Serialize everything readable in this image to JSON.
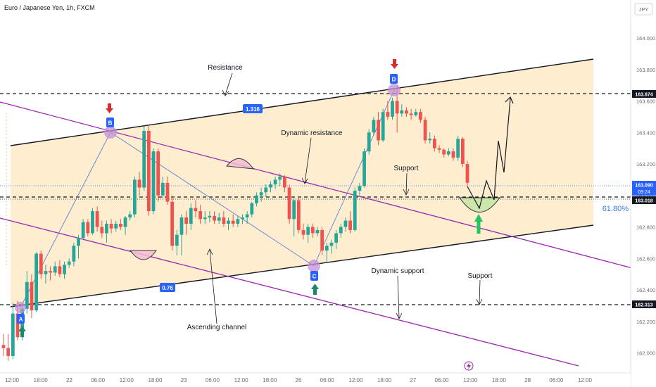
{
  "header": {
    "title": "Euro / Japanese Yen, 1h, FXCM",
    "currency": "JPY"
  },
  "colors": {
    "bull": "#26a69a",
    "bear": "#ef5350",
    "channel_fill": "#fde8bf",
    "dynamic_line": "#9c27b0",
    "pattern_blue": "#2962ff",
    "price_tag": "#131722",
    "live_tag": "#2962ff"
  },
  "annotations": {
    "resistance": "Resistance",
    "dynamic_resistance": "Dynamic resistance",
    "support_upper": "Support",
    "dynamic_support": "Dynamic support",
    "support_lower": "Support",
    "ascending_channel": "Ascending channel",
    "ratio_upper": "1.316",
    "ratio_lower": "0.76",
    "fib_level": "61.80%",
    "point_a": "A",
    "point_b": "B",
    "point_c": "C",
    "point_d": "D"
  },
  "price_tags": {
    "resistance_level": "163.674",
    "live_price": "163.090",
    "countdown": "09:24",
    "support_level": "163.018",
    "lower_support_level": "162.313"
  },
  "chart_data": {
    "type": "candlestick",
    "title": "Euro / Japanese Yen, 1h, FXCM",
    "y_axis_ticks": [
      "164.000",
      "163.800",
      "163.600",
      "163.400",
      "163.200",
      "163.000",
      "162.800",
      "162.600",
      "162.400",
      "162.200",
      "162.000"
    ],
    "ylim": [
      161.93,
      164.2
    ],
    "x_axis_ticks": [
      "12:00",
      "18:00",
      "22",
      "06:00",
      "12:00",
      "18:00",
      "23",
      "06:00",
      "12:00",
      "18:00",
      "26",
      "06:00",
      "12:00",
      "18:00",
      "27",
      "06:00",
      "12:00",
      "18:00",
      "28",
      "06:00",
      "12:00"
    ],
    "horizontal_levels": [
      163.674,
      163.018,
      162.313
    ],
    "candles_ohlc": [
      [
        162.05,
        162.12,
        161.98,
        162.03
      ],
      [
        162.03,
        162.12,
        161.95,
        161.98
      ],
      [
        161.98,
        162.32,
        161.96,
        162.25
      ],
      [
        162.25,
        162.33,
        162.08,
        162.1
      ],
      [
        162.1,
        162.3,
        162.08,
        162.28
      ],
      [
        162.28,
        162.52,
        162.25,
        162.45
      ],
      [
        162.45,
        162.5,
        162.22,
        162.27
      ],
      [
        162.27,
        162.64,
        162.26,
        162.63
      ],
      [
        162.63,
        162.65,
        162.47,
        162.5
      ],
      [
        162.5,
        162.56,
        162.44,
        162.52
      ],
      [
        162.52,
        162.55,
        162.46,
        162.51
      ],
      [
        162.51,
        162.58,
        162.49,
        162.55
      ],
      [
        162.55,
        162.59,
        162.48,
        162.5
      ],
      [
        162.5,
        162.58,
        162.47,
        162.56
      ],
      [
        162.56,
        162.6,
        162.54,
        162.58
      ],
      [
        162.58,
        162.7,
        162.55,
        162.68
      ],
      [
        162.68,
        162.75,
        162.6,
        162.73
      ],
      [
        162.73,
        162.85,
        162.72,
        162.83
      ],
      [
        162.83,
        162.85,
        162.74,
        162.76
      ],
      [
        162.76,
        162.92,
        162.75,
        162.9
      ],
      [
        162.9,
        162.93,
        162.77,
        162.8
      ],
      [
        162.8,
        162.84,
        162.73,
        162.76
      ],
      [
        162.76,
        162.84,
        162.7,
        162.82
      ],
      [
        162.82,
        162.85,
        162.76,
        162.79
      ],
      [
        162.79,
        162.84,
        162.77,
        162.82
      ],
      [
        162.82,
        162.85,
        162.78,
        162.8
      ],
      [
        162.8,
        162.87,
        162.75,
        162.86
      ],
      [
        162.86,
        162.9,
        162.84,
        162.88
      ],
      [
        162.88,
        163.12,
        162.86,
        163.1
      ],
      [
        163.1,
        163.15,
        163.0,
        163.05
      ],
      [
        163.05,
        163.44,
        163.03,
        163.41
      ],
      [
        163.41,
        163.45,
        162.87,
        162.9
      ],
      [
        162.9,
        163.3,
        162.88,
        163.28
      ],
      [
        163.28,
        163.3,
        162.96,
        163.0
      ],
      [
        163.0,
        163.12,
        162.98,
        163.08
      ],
      [
        163.08,
        163.12,
        162.94,
        162.96
      ],
      [
        162.96,
        163.0,
        162.65,
        162.68
      ],
      [
        162.68,
        162.78,
        162.62,
        162.75
      ],
      [
        162.75,
        162.88,
        162.62,
        162.86
      ],
      [
        162.86,
        162.9,
        162.75,
        162.82
      ],
      [
        162.82,
        162.95,
        162.78,
        162.92
      ],
      [
        162.92,
        162.97,
        162.86,
        162.9
      ],
      [
        162.9,
        162.94,
        162.82,
        162.85
      ],
      [
        162.85,
        162.9,
        162.82,
        162.86
      ],
      [
        162.86,
        162.9,
        162.83,
        162.87
      ],
      [
        162.87,
        162.9,
        162.82,
        162.84
      ],
      [
        162.84,
        162.89,
        162.82,
        162.86
      ],
      [
        162.86,
        162.9,
        162.8,
        162.82
      ],
      [
        162.82,
        162.86,
        162.78,
        162.84
      ],
      [
        162.84,
        162.88,
        162.8,
        162.82
      ],
      [
        162.82,
        162.87,
        162.8,
        162.85
      ],
      [
        162.85,
        162.88,
        162.82,
        162.86
      ],
      [
        162.86,
        162.9,
        162.82,
        162.88
      ],
      [
        162.88,
        162.96,
        162.86,
        162.95
      ],
      [
        162.95,
        163.02,
        162.93,
        163.0
      ],
      [
        163.0,
        163.05,
        162.96,
        163.02
      ],
      [
        163.02,
        163.07,
        162.99,
        163.05
      ],
      [
        163.05,
        163.09,
        163.02,
        163.07
      ],
      [
        163.07,
        163.12,
        163.04,
        163.1
      ],
      [
        163.1,
        163.14,
        163.06,
        163.12
      ],
      [
        163.12,
        163.13,
        163.02,
        163.05
      ],
      [
        163.05,
        163.07,
        162.82,
        162.85
      ],
      [
        162.85,
        162.99,
        162.74,
        162.97
      ],
      [
        162.97,
        162.99,
        162.76,
        162.78
      ],
      [
        162.78,
        162.82,
        162.72,
        162.75
      ],
      [
        162.75,
        162.82,
        162.7,
        162.8
      ],
      [
        162.8,
        162.82,
        162.73,
        162.76
      ],
      [
        162.76,
        162.8,
        162.74,
        162.78
      ],
      [
        162.78,
        162.8,
        162.62,
        162.65
      ],
      [
        162.65,
        162.7,
        162.58,
        162.68
      ],
      [
        162.68,
        162.72,
        162.63,
        162.7
      ],
      [
        162.7,
        162.78,
        162.66,
        162.76
      ],
      [
        162.76,
        162.82,
        162.73,
        162.8
      ],
      [
        162.8,
        162.86,
        162.77,
        162.84
      ],
      [
        162.84,
        162.9,
        162.76,
        162.78
      ],
      [
        162.78,
        163.05,
        162.77,
        163.03
      ],
      [
        163.03,
        163.08,
        163.0,
        163.06
      ],
      [
        163.06,
        163.3,
        163.05,
        163.28
      ],
      [
        163.28,
        163.42,
        163.26,
        163.4
      ],
      [
        163.4,
        163.5,
        163.38,
        163.48
      ],
      [
        163.48,
        163.53,
        163.32,
        163.35
      ],
      [
        163.35,
        163.55,
        163.34,
        163.53
      ],
      [
        163.53,
        163.6,
        163.48,
        163.5
      ],
      [
        163.5,
        163.62,
        163.48,
        163.6
      ],
      [
        163.6,
        163.7,
        163.4,
        163.52
      ],
      [
        163.52,
        163.58,
        163.5,
        163.54
      ],
      [
        163.54,
        163.56,
        163.5,
        163.52
      ],
      [
        163.52,
        163.55,
        163.48,
        163.51
      ],
      [
        163.51,
        163.55,
        163.5,
        163.53
      ],
      [
        163.53,
        163.55,
        163.46,
        163.48
      ],
      [
        163.48,
        163.5,
        163.33,
        163.35
      ],
      [
        163.35,
        163.4,
        163.33,
        163.36
      ],
      [
        163.36,
        163.38,
        163.28,
        163.3
      ],
      [
        163.3,
        163.32,
        163.27,
        163.29
      ],
      [
        163.29,
        163.3,
        163.24,
        163.26
      ],
      [
        163.26,
        163.3,
        163.25,
        163.28
      ],
      [
        163.28,
        163.3,
        163.22,
        163.24
      ],
      [
        163.24,
        163.38,
        163.22,
        163.36
      ],
      [
        163.36,
        163.37,
        163.18,
        163.2
      ],
      [
        163.2,
        163.22,
        163.06,
        163.08
      ]
    ]
  }
}
